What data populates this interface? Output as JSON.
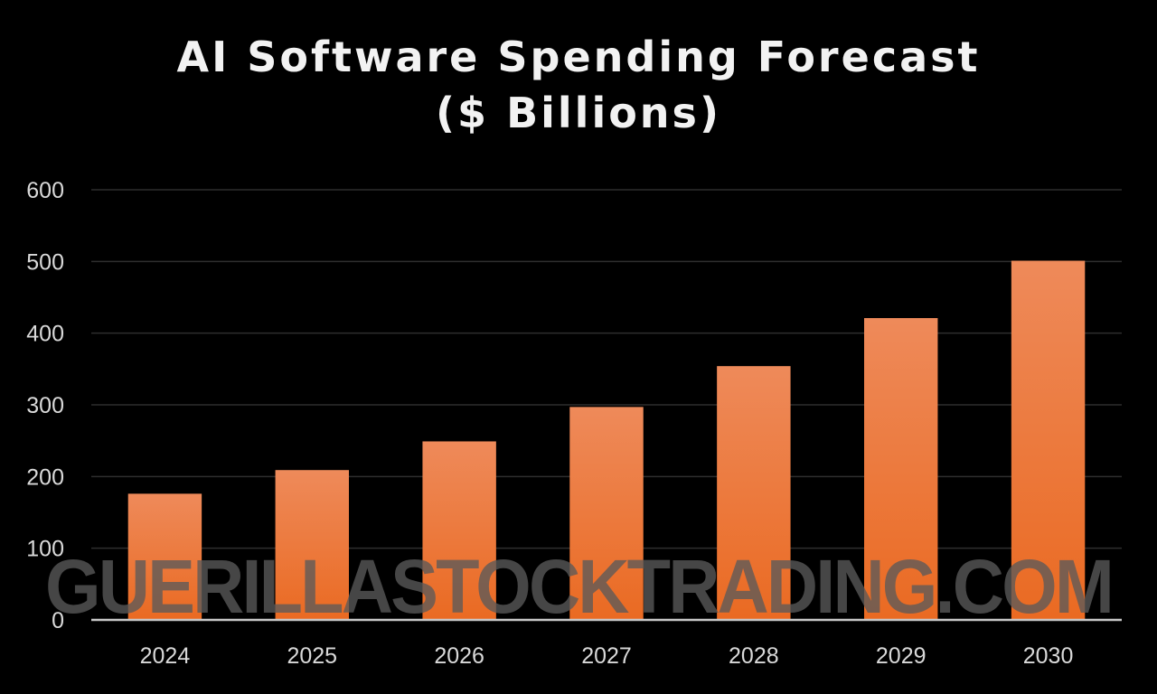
{
  "chart_data": {
    "type": "bar",
    "title_line1": "AI Software Spending Forecast",
    "title_line2": "($ Billions)",
    "categories": [
      "2024",
      "2025",
      "2026",
      "2027",
      "2028",
      "2029",
      "2030"
    ],
    "values": [
      176,
      209,
      249,
      297,
      354,
      421,
      501
    ],
    "ylim": [
      0,
      600
    ],
    "yticks": [
      0,
      100,
      200,
      300,
      400,
      500,
      600
    ],
    "xlabel": "",
    "ylabel": "",
    "grid": true,
    "legend": "none",
    "bar_color_top": "#ee8a5a",
    "bar_color_bottom": "#ea6a22",
    "background": "#000000"
  },
  "watermark": "GUERILLASTOCKTRADING.COM"
}
